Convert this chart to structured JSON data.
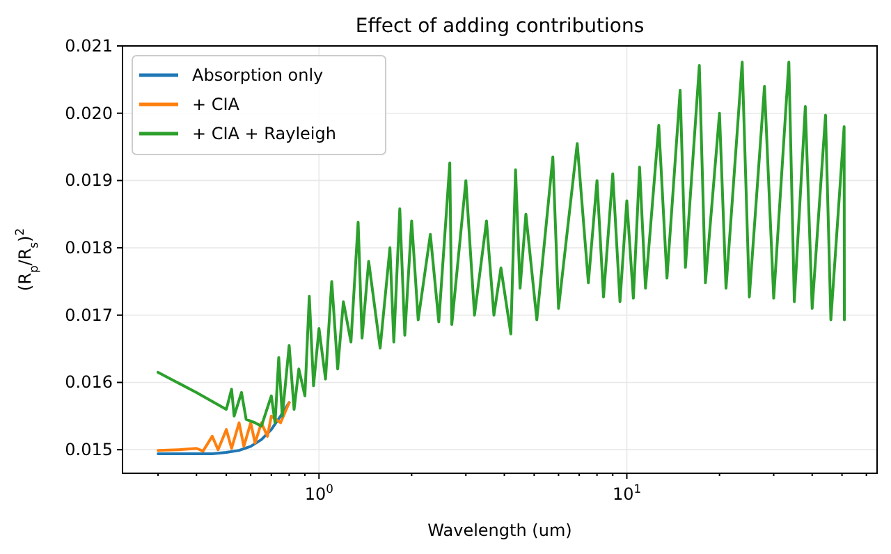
{
  "chart_data": {
    "type": "line",
    "title": "Effect of adding contributions",
    "xlabel": "Wavelength (um)",
    "ylabel": "(R$_{p}$/R$_{s}$)$^{2}$",
    "log": "x",
    "grid": true,
    "legend": "top left",
    "line_style": "solid",
    "marker": "none",
    "xlim": [
      0.23,
      65
    ],
    "ylim": [
      0.01465,
      0.021
    ],
    "xticks": [
      {
        "value": 0.3,
        "label": null
      },
      {
        "value": 0.4,
        "label": null
      },
      {
        "value": 0.5,
        "label": null
      },
      {
        "value": 0.6,
        "label": null
      },
      {
        "value": 0.7,
        "label": null
      },
      {
        "value": 0.8,
        "label": null
      },
      {
        "value": 0.9,
        "label": null
      },
      {
        "value": 1,
        "label": "10$^{0}$"
      },
      {
        "value": 2,
        "label": null
      },
      {
        "value": 3,
        "label": null
      },
      {
        "value": 4,
        "label": null
      },
      {
        "value": 5,
        "label": null
      },
      {
        "value": 6,
        "label": null
      },
      {
        "value": 7,
        "label": null
      },
      {
        "value": 8,
        "label": null
      },
      {
        "value": 9,
        "label": null
      },
      {
        "value": 10,
        "label": "10$^{1}$"
      },
      {
        "value": 20,
        "label": null
      },
      {
        "value": 30,
        "label": null
      },
      {
        "value": 40,
        "label": null
      },
      {
        "value": 50,
        "label": null
      },
      {
        "value": 60,
        "label": null
      }
    ],
    "yticks": [
      {
        "value": 0.015,
        "label": "0.015"
      },
      {
        "value": 0.016,
        "label": "0.016"
      },
      {
        "value": 0.017,
        "label": "0.017"
      },
      {
        "value": 0.018,
        "label": "0.018"
      },
      {
        "value": 0.019,
        "label": "0.019"
      },
      {
        "value": 0.02,
        "label": "0.020"
      },
      {
        "value": 0.021,
        "label": "0.021"
      }
    ],
    "series": [
      {
        "name": "Absorption only",
        "color": "#1f77b4",
        "x": [
          0.3,
          0.35,
          0.4,
          0.45,
          0.5,
          0.55,
          0.6,
          0.65,
          0.7,
          0.75,
          0.8
        ],
        "values": [
          0.01494,
          0.01494,
          0.01494,
          0.01494,
          0.01496,
          0.01499,
          0.01505,
          0.01515,
          0.0153,
          0.0155,
          0.0157
        ]
      },
      {
        "name": "+ CIA",
        "color": "#ff7f0e",
        "x": [
          0.3,
          0.35,
          0.4,
          0.42,
          0.45,
          0.47,
          0.5,
          0.52,
          0.55,
          0.57,
          0.6,
          0.62,
          0.65,
          0.68,
          0.7,
          0.75,
          0.8
        ],
        "values": [
          0.01499,
          0.015,
          0.01502,
          0.01498,
          0.0152,
          0.015,
          0.0153,
          0.01502,
          0.0154,
          0.01505,
          0.0154,
          0.0151,
          0.0154,
          0.0152,
          0.0155,
          0.0154,
          0.0157
        ]
      },
      {
        "name": "+ CIA + Rayleigh",
        "color": "#2ca02c",
        "x": [
          0.3,
          0.4,
          0.5,
          0.52,
          0.53,
          0.56,
          0.58,
          0.62,
          0.65,
          0.7,
          0.72,
          0.74,
          0.76,
          0.8,
          0.83,
          0.86,
          0.9,
          0.93,
          0.96,
          1.0,
          1.05,
          1.1,
          1.15,
          1.2,
          1.27,
          1.34,
          1.38,
          1.45,
          1.58,
          1.7,
          1.75,
          1.83,
          1.9,
          2.0,
          2.1,
          2.3,
          2.45,
          2.66,
          2.7,
          3.0,
          3.2,
          3.5,
          3.7,
          3.9,
          4.2,
          4.35,
          4.5,
          4.7,
          5.1,
          5.75,
          6.0,
          6.9,
          7.5,
          8.0,
          8.4,
          9.0,
          9.5,
          10,
          10.5,
          11,
          11.5,
          12.7,
          13.5,
          14.9,
          15.5,
          17.2,
          18,
          20,
          21,
          23.7,
          25,
          28,
          30,
          33.6,
          35,
          38,
          40,
          44.2,
          46,
          50.8,
          50.9
        ],
        "values": [
          0.01615,
          0.01585,
          0.0156,
          0.0159,
          0.0155,
          0.01585,
          0.01545,
          0.0154,
          0.01535,
          0.0158,
          0.0154,
          0.01637,
          0.0155,
          0.01655,
          0.0156,
          0.0162,
          0.0158,
          0.01728,
          0.01595,
          0.0168,
          0.01605,
          0.0175,
          0.0162,
          0.0172,
          0.0166,
          0.01838,
          0.01666,
          0.0178,
          0.01651,
          0.018,
          0.0166,
          0.01858,
          0.0167,
          0.0184,
          0.01693,
          0.0182,
          0.0169,
          0.01926,
          0.01686,
          0.019,
          0.017,
          0.0184,
          0.017,
          0.0177,
          0.01672,
          0.01916,
          0.0174,
          0.0185,
          0.01693,
          0.01935,
          0.0171,
          0.01955,
          0.01748,
          0.019,
          0.01727,
          0.0191,
          0.0172,
          0.0187,
          0.01725,
          0.0192,
          0.0174,
          0.01982,
          0.01755,
          0.02034,
          0.01771,
          0.02071,
          0.01748,
          0.02,
          0.0174,
          0.02076,
          0.01727,
          0.0204,
          0.01725,
          0.02076,
          0.0172,
          0.0201,
          0.0171,
          0.01997,
          0.01693,
          0.0198,
          0.01693
        ]
      }
    ]
  }
}
